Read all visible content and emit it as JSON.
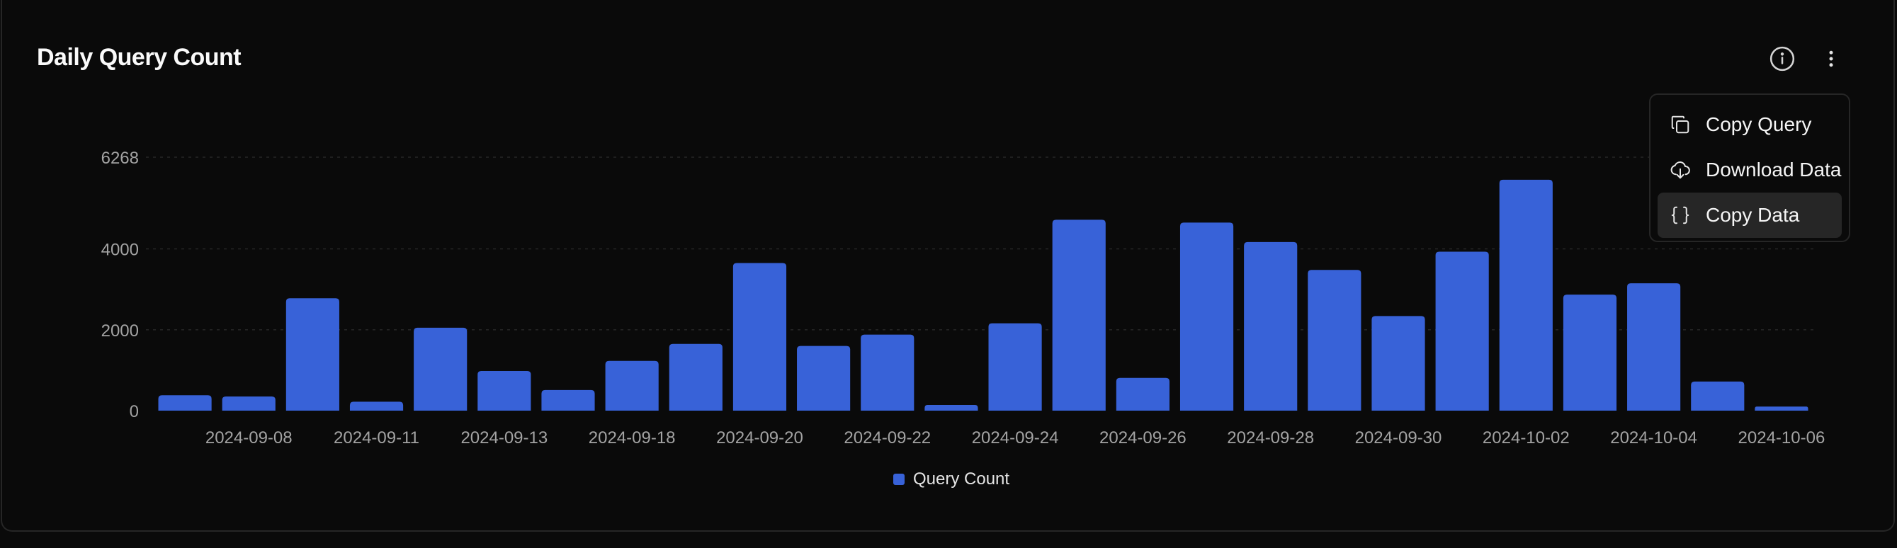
{
  "card": {
    "title": "Daily Query Count"
  },
  "header": {
    "info_icon": "info-icon",
    "more_icon": "more-vertical-icon"
  },
  "menu": {
    "items": [
      {
        "label": "Copy Query",
        "icon": "copy-icon",
        "active": false
      },
      {
        "label": "Download Data",
        "icon": "cloud-download-icon",
        "active": false
      },
      {
        "label": "Copy Data",
        "icon": "braces-icon",
        "active": true
      }
    ]
  },
  "colors": {
    "bar": "#3862d8",
    "background": "#0a0a0a",
    "border": "#262626",
    "grid": "#262626"
  },
  "chart_data": {
    "type": "bar",
    "title": "Daily Query Count",
    "xlabel": "",
    "ylabel": "",
    "ylim": [
      0,
      6268
    ],
    "yticks": [
      0,
      2000,
      4000,
      6268
    ],
    "grid": true,
    "legend": "bottom-center",
    "x_tick_labels": [
      "2024-09-08",
      "2024-09-11",
      "2024-09-13",
      "2024-09-18",
      "2024-09-20",
      "2024-09-22",
      "2024-09-24",
      "2024-09-26",
      "2024-09-28",
      "2024-09-30",
      "2024-10-02",
      "2024-10-04",
      "2024-10-06"
    ],
    "series": [
      {
        "name": "Query Count",
        "values": [
          380,
          350,
          2780,
          220,
          2050,
          980,
          510,
          1230,
          1650,
          3650,
          1600,
          1880,
          140,
          2160,
          4720,
          810,
          4650,
          4170,
          3480,
          2340,
          3930,
          5710,
          2870,
          3150,
          720,
          100
        ]
      }
    ]
  }
}
